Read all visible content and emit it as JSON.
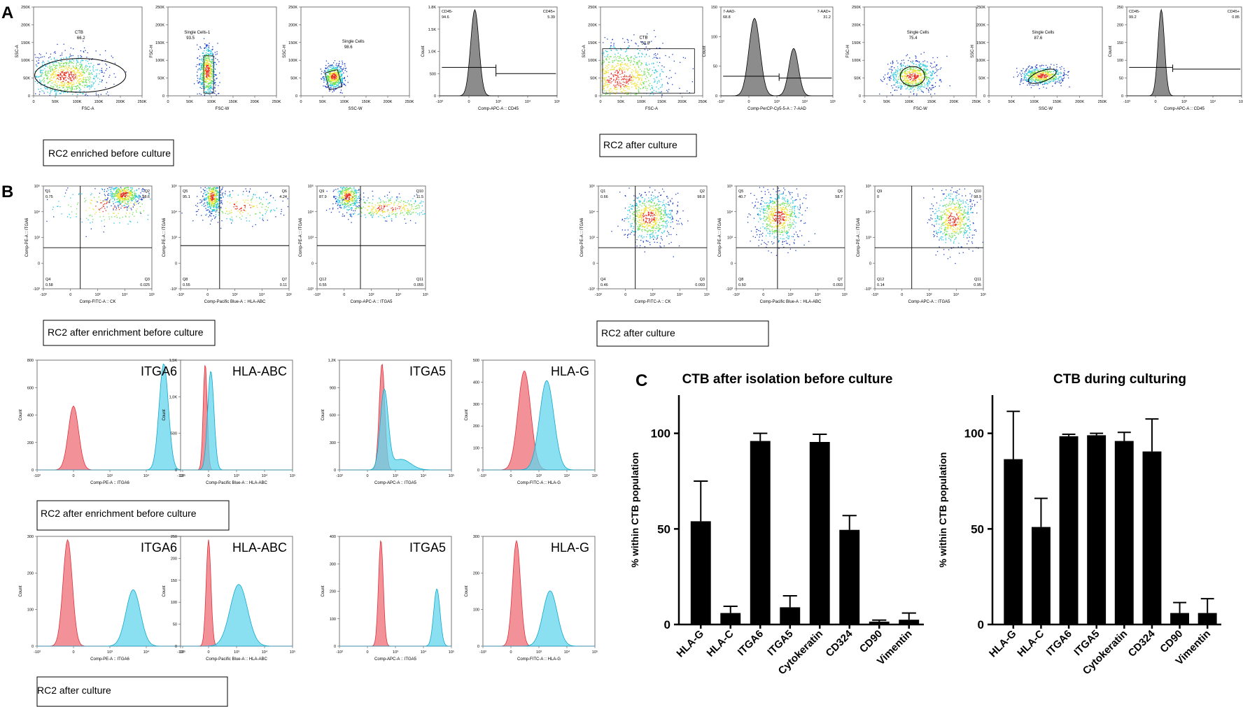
{
  "panel_labels": {
    "a": "A",
    "b": "B",
    "c": "C"
  },
  "colors": {
    "dot_blue": "#1b3cc4",
    "dot_cyan": "#20c4e0",
    "dot_green": "#6be050",
    "dot_yellow": "#f0e030",
    "dot_red": "#e83020",
    "hist_gray": "#8c8c8c",
    "hist_red": "#f07f86",
    "hist_cyan": "#63d4ec",
    "bar": "#000000"
  },
  "row_a": {
    "left_caption": "RC2 enriched before culture",
    "right_caption": "RC2 after culture",
    "plots": [
      {
        "ylabel": "SSC-A",
        "xlabel": "FSC-A",
        "yticks": [
          "250K",
          "200K",
          "150K",
          "100K",
          "50K",
          "0"
        ],
        "xticks": [
          "0",
          "50K",
          "100K",
          "150K",
          "200K",
          "250K"
        ],
        "gates": [
          {
            "label": "CTB",
            "value": "66.2"
          }
        ]
      },
      {
        "ylabel": "FSC-H",
        "xlabel": "FSC-W",
        "yticks": [
          "250K",
          "200K",
          "150K",
          "100K",
          "50K",
          "0"
        ],
        "xticks": [
          "0",
          "50K",
          "100K",
          "150K",
          "200K",
          "250K"
        ],
        "gates": [
          {
            "label": "Single Cells-1",
            "value": "93.5"
          }
        ]
      },
      {
        "ylabel": "SSC-H",
        "xlabel": "SSC-W",
        "yticks": [
          "250K",
          "200K",
          "150K",
          "100K",
          "50K",
          "0"
        ],
        "xticks": [
          "0",
          "50K",
          "100K",
          "150K",
          "200K",
          "250K"
        ],
        "gates": [
          {
            "label": "Single Cells",
            "value": "98.6"
          }
        ]
      },
      {
        "ylabel": "Count",
        "xlabel": "Comp-APC-A :: CD45",
        "yticks": [
          "1.8K",
          "1.5K",
          "1.0K",
          "500",
          "0"
        ],
        "xticks": [
          "-10³",
          "0",
          "10³",
          "10⁴",
          "10⁵"
        ],
        "gates": [
          {
            "label": "CD45-",
            "value": "94.6"
          },
          {
            "label": "CD45+",
            "value": "5.39"
          }
        ]
      },
      {
        "ylabel": "SSC-A",
        "xlabel": "FSC-A",
        "yticks": [
          "250K",
          "200K",
          "150K",
          "100K",
          "50K",
          "0"
        ],
        "xticks": [
          "0",
          "50K",
          "100K",
          "150K",
          "200K",
          "250K"
        ],
        "gates": [
          {
            "label": "CTB",
            "value": "52.8"
          }
        ]
      },
      {
        "ylabel": "Count",
        "xlabel": "Comp-PerCP-Cy5-5-A :: 7-AAD",
        "yticks": [
          "150",
          "100",
          "50",
          "0"
        ],
        "xticks": [
          "-10³",
          "0",
          "10³",
          "10⁴",
          "10⁵"
        ],
        "gates": [
          {
            "label": "7-AAD-",
            "value": "68.8"
          },
          {
            "label": "7-AAD+",
            "value": "31.2"
          }
        ]
      },
      {
        "ylabel": "FSC-H",
        "xlabel": "FSC-W",
        "yticks": [
          "250K",
          "200K",
          "150K",
          "100K",
          "50K",
          "0"
        ],
        "xticks": [
          "0",
          "50K",
          "100K",
          "150K",
          "200K",
          "250K"
        ],
        "gates": [
          {
            "label": "Single Cells",
            "value": "75.4"
          }
        ]
      },
      {
        "ylabel": "SSC-H",
        "xlabel": "SSC-W",
        "yticks": [
          "250K",
          "200K",
          "150K",
          "100K",
          "50K",
          "0"
        ],
        "xticks": [
          "0",
          "50K",
          "100K",
          "150K",
          "200K",
          "250K"
        ],
        "gates": [
          {
            "label": "Single Cells",
            "value": "87.6"
          }
        ]
      },
      {
        "ylabel": "Count",
        "xlabel": "Comp-APC-A :: CD45",
        "yticks": [
          "250",
          "200",
          "150",
          "100",
          "50",
          "0"
        ],
        "xticks": [
          "-10³",
          "0",
          "10³",
          "10⁴",
          "10⁵"
        ],
        "gates": [
          {
            "label": "CD45-",
            "value": "99.2"
          },
          {
            "label": "CD45+",
            "value": "0.85"
          }
        ]
      }
    ]
  },
  "row_b": {
    "left_caption": "RC2 after enrichment before culture",
    "right_caption": "RC2 after culture",
    "yticks": [
      "10⁵",
      "10⁴",
      "10³",
      "0",
      "-10³"
    ],
    "xticks": [
      "-10³",
      "0",
      "10³",
      "10⁴",
      "10⁵"
    ],
    "plots": [
      {
        "ylabel": "Comp-PE-A :: ITGA6",
        "xlabel": "Comp-FITC-A :: CK",
        "quads": [
          {
            "label": "Q1",
            "value": "0.75"
          },
          {
            "label": "Q2",
            "value": "98.6"
          },
          {
            "label": "Q3",
            "value": "0.025"
          },
          {
            "label": "Q4",
            "value": "0.58"
          }
        ]
      },
      {
        "ylabel": "Comp-PE-A :: ITGA6",
        "xlabel": "Comp-Pacific Blue-A :: HLA-ABC",
        "quads": [
          {
            "label": "Q5",
            "value": "95.1"
          },
          {
            "label": "Q6",
            "value": "4.24"
          },
          {
            "label": "Q7",
            "value": "0.11"
          },
          {
            "label": "Q8",
            "value": "0.55"
          }
        ]
      },
      {
        "ylabel": "Comp-PE-A :: ITGA6",
        "xlabel": "Comp-APC-A :: ITGA5",
        "quads": [
          {
            "label": "Q9",
            "value": "87.9"
          },
          {
            "label": "Q10",
            "value": "11.5"
          },
          {
            "label": "Q11",
            "value": "0.055"
          },
          {
            "label": "Q12",
            "value": "0.55"
          }
        ]
      },
      {
        "ylabel": "Comp-PE-A :: ITGA6",
        "xlabel": "Comp-FITC-A :: CK",
        "quads": [
          {
            "label": "Q1",
            "value": "0.66"
          },
          {
            "label": "Q2",
            "value": "98.8"
          },
          {
            "label": "Q3",
            "value": "0.093"
          },
          {
            "label": "Q4",
            "value": "0.46"
          }
        ]
      },
      {
        "ylabel": "Comp-PE-A :: ITGA6",
        "xlabel": "Comp-Pacific Blue-A :: HLA-ABC",
        "quads": [
          {
            "label": "Q5",
            "value": "40.7"
          },
          {
            "label": "Q6",
            "value": "58.7"
          },
          {
            "label": "Q7",
            "value": "0.093"
          },
          {
            "label": "Q8",
            "value": "0.50"
          }
        ]
      },
      {
        "ylabel": "Comp-PE-A :: ITGA6",
        "xlabel": "Comp-APC-A :: ITGA5",
        "quads": [
          {
            "label": "Q9",
            "value": "0"
          },
          {
            "label": "Q10",
            "value": "98.9"
          },
          {
            "label": "Q11",
            "value": "0.95"
          },
          {
            "label": "Q12",
            "value": "0.14"
          }
        ]
      }
    ]
  },
  "hist_rows": [
    {
      "caption": "RC2 after enrichment before culture",
      "plots": [
        {
          "title": "ITGA6",
          "ylabel": "Count",
          "xlabel": "Comp-PE-A :: ITGA6",
          "yticks": [
            "800",
            "600",
            "400",
            "200",
            "0"
          ],
          "xticks": [
            "-10³",
            "0",
            "10³",
            "10⁴",
            "10⁵"
          ]
        },
        {
          "title": "HLA-ABC",
          "ylabel": "Count",
          "xlabel": "Comp-Pacific Blue-A :: HLA-ABC",
          "yticks": [
            "1,5K",
            "1,0K",
            "500",
            "0"
          ],
          "xticks": [
            "-10³",
            "0",
            "10³",
            "10⁴",
            "10⁵"
          ]
        },
        {
          "title": "ITGA5",
          "ylabel": "Count",
          "xlabel": "Comp-APC-A :: ITGA5",
          "yticks": [
            "1,2K",
            "900",
            "600",
            "300",
            "0"
          ],
          "xticks": [
            "-10³",
            "0",
            "10³",
            "10⁴",
            "10⁵"
          ]
        },
        {
          "title": "HLA-G",
          "ylabel": "Count",
          "xlabel": "Comp-FITC-A :: HLA-G",
          "yticks": [
            "500",
            "400",
            "300",
            "200",
            "100",
            "0"
          ],
          "xticks": [
            "-10³",
            "0",
            "10³",
            "10⁴",
            "10⁵"
          ]
        }
      ]
    },
    {
      "caption": "RC2 after culture",
      "plots": [
        {
          "title": "ITGA6",
          "ylabel": "Count",
          "xlabel": "Comp-PE-A :: ITGA6",
          "yticks": [
            "300",
            "200",
            "100",
            "0"
          ],
          "xticks": [
            "-10³",
            "0",
            "10³",
            "10⁴",
            "10⁵"
          ]
        },
        {
          "title": "HLA-ABC",
          "ylabel": "Count",
          "xlabel": "Comp-Pacific Blue-A :: HLA-ABC",
          "yticks": [
            "250",
            "200",
            "150",
            "100",
            "50",
            "0"
          ],
          "xticks": [
            "-10³",
            "0",
            "10³",
            "10⁴",
            "10⁵"
          ]
        },
        {
          "title": "ITGA5",
          "ylabel": "Count",
          "xlabel": "Comp-APC-A :: ITGA5",
          "yticks": [
            "400",
            "300",
            "200",
            "100",
            "0"
          ],
          "xticks": [
            "-10³",
            "0",
            "10³",
            "10⁴",
            "10⁵"
          ]
        },
        {
          "title": "HLA-G",
          "ylabel": "Count",
          "xlabel": "Comp-FITC-A :: HLA-G",
          "yticks": [
            "300",
            "200",
            "100",
            "0"
          ],
          "xticks": [
            "-10³",
            "0",
            "10³",
            "10⁴",
            "10⁵"
          ]
        }
      ]
    }
  ],
  "chart_data": [
    {
      "type": "bar",
      "title": "CTB after isolation before culture",
      "ylabel": "% within CTB population",
      "xlabel": "",
      "ylim": [
        0,
        120
      ],
      "yticks": [
        0,
        50,
        100
      ],
      "categories": [
        "HLA-G",
        "HLA-C",
        "ITGA6",
        "ITGA5",
        "Cytokeratin",
        "CD324",
        "CD90",
        "Vimentin"
      ],
      "values": [
        54,
        6,
        96,
        9,
        95.5,
        49.5,
        1.5,
        2.5
      ],
      "errors": [
        21,
        3.5,
        4,
        6,
        4,
        7.5,
        0.8,
        3.5
      ]
    },
    {
      "type": "bar",
      "title": "CTB during culturing",
      "ylabel": "% within CTB population",
      "xlabel": "",
      "ylim": [
        0,
        120
      ],
      "yticks": [
        0,
        50,
        100
      ],
      "categories": [
        "HLA-G",
        "HLA-C",
        "ITGA6",
        "ITGA5",
        "Cytokeratin",
        "CD324",
        "CD90",
        "Vimentin"
      ],
      "values": [
        86.5,
        51,
        98.5,
        99,
        96,
        90.5,
        6,
        6
      ],
      "errors": [
        25,
        15,
        1,
        1,
        4.5,
        17,
        5.5,
        7.5
      ]
    }
  ]
}
